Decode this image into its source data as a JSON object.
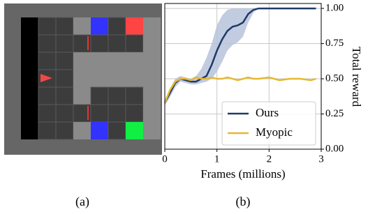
{
  "captions": [
    "(a)",
    "(b)"
  ],
  "chart_data": {
    "type": "line",
    "xlabel": "Frames (millions)",
    "ylabel": "Total reward",
    "x": [
      0,
      0.1,
      0.2,
      0.3,
      0.4,
      0.5,
      0.6,
      0.7,
      0.8,
      0.9,
      1.0,
      1.1,
      1.2,
      1.3,
      1.4,
      1.5,
      1.6,
      1.7,
      1.8,
      2.0,
      2.2,
      2.4,
      2.6,
      2.8,
      2.9
    ],
    "series": [
      {
        "name": "Ours",
        "color": "#1f3a68",
        "band_color": "#b7c3da",
        "values": [
          0.33,
          0.4,
          0.47,
          0.5,
          0.49,
          0.48,
          0.48,
          0.5,
          0.52,
          0.6,
          0.7,
          0.78,
          0.84,
          0.87,
          0.88,
          0.9,
          0.96,
          0.99,
          1,
          1,
          1,
          1,
          1,
          1,
          1
        ],
        "upper": [
          0.35,
          0.43,
          0.5,
          0.52,
          0.51,
          0.5,
          0.52,
          0.57,
          0.65,
          0.75,
          0.88,
          0.95,
          0.99,
          1,
          1,
          1,
          1,
          1,
          1,
          1,
          1,
          1,
          1,
          1,
          1
        ],
        "lower": [
          0.31,
          0.37,
          0.44,
          0.48,
          0.47,
          0.46,
          0.46,
          0.47,
          0.48,
          0.5,
          0.55,
          0.62,
          0.7,
          0.74,
          0.76,
          0.8,
          0.9,
          0.97,
          1,
          1,
          1,
          1,
          1,
          1,
          1
        ]
      },
      {
        "name": "Myopic",
        "color": "#e6b830",
        "values": [
          0.33,
          0.42,
          0.48,
          0.5,
          0.5,
          0.49,
          0.51,
          0.5,
          0.5,
          0.51,
          0.5,
          0.5,
          0.51,
          0.5,
          0.49,
          0.5,
          0.51,
          0.5,
          0.5,
          0.51,
          0.49,
          0.5,
          0.5,
          0.49,
          0.5
        ]
      }
    ],
    "xlim": [
      0,
      3
    ],
    "xticks": [
      0,
      1,
      2,
      3
    ],
    "ylim": [
      0,
      1.035
    ],
    "yticks": [
      {
        "value": 0,
        "label": "0.00"
      },
      {
        "value": 0.25,
        "label": "0.25"
      },
      {
        "value": 0.5,
        "label": "0.50"
      },
      {
        "value": 0.75,
        "label": "0.75"
      },
      {
        "value": 1,
        "label": "1.00"
      }
    ],
    "y_axis_side": "right",
    "grid": true,
    "legend": "lower right"
  }
}
